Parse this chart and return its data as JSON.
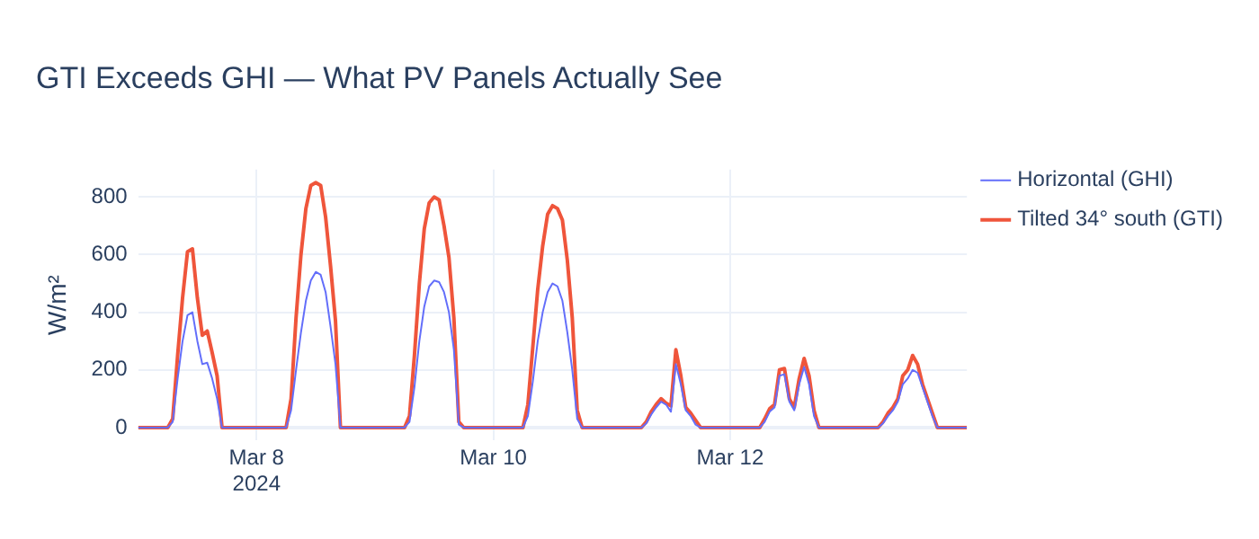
{
  "chart_data": {
    "type": "line",
    "title": "GTI Exceeds GHI — What PV Panels Actually See",
    "ylabel": "W/m²",
    "x": [
      "2024-03-07T00:00",
      "2024-03-07T06:00",
      "2024-03-07T07:00",
      "2024-03-07T08:00",
      "2024-03-07T09:00",
      "2024-03-07T10:00",
      "2024-03-07T11:00",
      "2024-03-07T12:00",
      "2024-03-07T13:00",
      "2024-03-07T14:00",
      "2024-03-07T15:00",
      "2024-03-07T16:00",
      "2024-03-07T17:00",
      "2024-03-07T18:00",
      "2024-03-08T06:00",
      "2024-03-08T07:00",
      "2024-03-08T08:00",
      "2024-03-08T09:00",
      "2024-03-08T10:00",
      "2024-03-08T11:00",
      "2024-03-08T12:00",
      "2024-03-08T13:00",
      "2024-03-08T14:00",
      "2024-03-08T15:00",
      "2024-03-08T16:00",
      "2024-03-08T17:00",
      "2024-03-08T18:00",
      "2024-03-09T06:00",
      "2024-03-09T07:00",
      "2024-03-09T08:00",
      "2024-03-09T09:00",
      "2024-03-09T10:00",
      "2024-03-09T11:00",
      "2024-03-09T12:00",
      "2024-03-09T13:00",
      "2024-03-09T14:00",
      "2024-03-09T15:00",
      "2024-03-09T16:00",
      "2024-03-09T17:00",
      "2024-03-09T18:00",
      "2024-03-10T06:00",
      "2024-03-10T07:00",
      "2024-03-10T08:00",
      "2024-03-10T09:00",
      "2024-03-10T10:00",
      "2024-03-10T11:00",
      "2024-03-10T12:00",
      "2024-03-10T13:00",
      "2024-03-10T14:00",
      "2024-03-10T15:00",
      "2024-03-10T16:00",
      "2024-03-10T17:00",
      "2024-03-10T18:00",
      "2024-03-11T06:00",
      "2024-03-11T07:00",
      "2024-03-11T08:00",
      "2024-03-11T09:00",
      "2024-03-11T10:00",
      "2024-03-11T11:00",
      "2024-03-11T12:00",
      "2024-03-11T13:00",
      "2024-03-11T14:00",
      "2024-03-11T15:00",
      "2024-03-11T16:00",
      "2024-03-11T17:00",
      "2024-03-11T18:00",
      "2024-03-12T06:00",
      "2024-03-12T07:00",
      "2024-03-12T08:00",
      "2024-03-12T09:00",
      "2024-03-12T10:00",
      "2024-03-12T11:00",
      "2024-03-12T12:00",
      "2024-03-12T13:00",
      "2024-03-12T14:00",
      "2024-03-12T15:00",
      "2024-03-12T16:00",
      "2024-03-12T17:00",
      "2024-03-12T18:00",
      "2024-03-13T06:00",
      "2024-03-13T07:00",
      "2024-03-13T08:00",
      "2024-03-13T09:00",
      "2024-03-13T10:00",
      "2024-03-13T11:00",
      "2024-03-13T12:00",
      "2024-03-13T13:00",
      "2024-03-13T14:00",
      "2024-03-13T15:00",
      "2024-03-13T16:00",
      "2024-03-13T17:00",
      "2024-03-13T18:00",
      "2024-03-14T00:00"
    ],
    "series": [
      {
        "name": "Horizontal (GHI)",
        "color": "#636efa",
        "values": [
          0,
          0,
          20,
          170,
          300,
          390,
          400,
          300,
          220,
          225,
          170,
          100,
          0,
          0,
          0,
          60,
          200,
          330,
          440,
          510,
          540,
          530,
          470,
          350,
          220,
          0,
          0,
          0,
          20,
          140,
          300,
          420,
          490,
          510,
          505,
          470,
          400,
          270,
          10,
          0,
          0,
          40,
          160,
          300,
          400,
          470,
          500,
          490,
          440,
          330,
          200,
          30,
          0,
          0,
          15,
          45,
          70,
          90,
          80,
          55,
          220,
          150,
          60,
          40,
          10,
          0,
          0,
          20,
          55,
          70,
          180,
          185,
          90,
          60,
          150,
          210,
          150,
          40,
          0,
          0,
          15,
          40,
          60,
          90,
          150,
          170,
          200,
          190,
          140,
          90,
          40,
          0,
          0
        ]
      },
      {
        "name": "Tilted 34° south (GTI)",
        "color": "#ef553b",
        "values": [
          0,
          0,
          30,
          250,
          450,
          610,
          620,
          450,
          320,
          335,
          260,
          180,
          0,
          0,
          0,
          100,
          380,
          600,
          760,
          840,
          850,
          840,
          730,
          560,
          370,
          0,
          0,
          0,
          40,
          250,
          500,
          690,
          780,
          800,
          790,
          700,
          590,
          380,
          20,
          0,
          0,
          80,
          280,
          480,
          630,
          740,
          770,
          760,
          720,
          580,
          380,
          60,
          0,
          0,
          20,
          55,
          80,
          100,
          85,
          75,
          270,
          180,
          70,
          50,
          25,
          0,
          0,
          30,
          65,
          80,
          200,
          205,
          100,
          70,
          170,
          240,
          180,
          60,
          0,
          0,
          20,
          50,
          70,
          100,
          180,
          200,
          250,
          220,
          150,
          100,
          50,
          0,
          0
        ]
      }
    ],
    "xlim": [
      "2024-03-07T00:00",
      "2024-03-14T00:00"
    ],
    "xticks": [
      {
        "value": "2024-03-08T00:00",
        "label": "Mar 8\n2024"
      },
      {
        "value": "2024-03-10T00:00",
        "label": "Mar 10"
      },
      {
        "value": "2024-03-12T00:00",
        "label": "Mar 12"
      }
    ],
    "ylim": [
      -45,
      895
    ],
    "yticks": [
      0,
      200,
      400,
      600,
      800
    ],
    "grid": true,
    "legend": "right",
    "marker": "none",
    "line_style": "solid"
  }
}
